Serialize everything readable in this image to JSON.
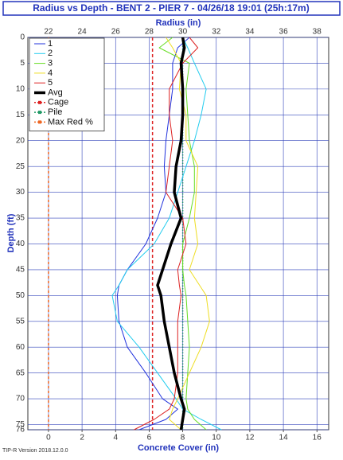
{
  "chart_data": {
    "type": "line",
    "title": "Radius vs Depth - BENT 2 - PIER 7 - 04/26/18 19:01 (25h:17m)",
    "xlabel_top": "Radius (in)",
    "xlabel": "Concrete Cover (in)",
    "ylabel": "Depth (ft)",
    "footnote": "TIP-R Version 2018.12.0.0",
    "grid": true,
    "legend": "upper left",
    "y_inverted": true,
    "ylim": [
      0,
      76
    ],
    "yticks": [
      0,
      5,
      10,
      15,
      20,
      25,
      30,
      35,
      40,
      45,
      50,
      55,
      60,
      65,
      70,
      75,
      76
    ],
    "xlim": [
      20.77,
      38.7
    ],
    "xticks": [
      22,
      24,
      26,
      28,
      30,
      32,
      34,
      36,
      38
    ],
    "x2lim": [
      -1.23,
      16.7
    ],
    "x2ticks": [
      0,
      2,
      4,
      6,
      8,
      10,
      12,
      14,
      16
    ],
    "y": [
      0,
      2,
      5,
      10,
      15,
      20,
      25,
      30,
      35,
      40,
      45,
      48,
      50,
      55,
      60,
      65,
      70,
      72,
      74,
      76
    ],
    "series": [
      {
        "name": "1",
        "color": "#2233dd",
        "width": 1,
        "values": [
          30.4,
          29.7,
          29.4,
          29.4,
          29.2,
          29.0,
          28.9,
          29.0,
          28.5,
          27.8,
          26.7,
          26.2,
          26.1,
          26.2,
          26.7,
          27.8,
          28.8,
          29.7,
          29.0,
          27.4
        ]
      },
      {
        "name": "2",
        "color": "#22ccee",
        "width": 1,
        "values": [
          30.0,
          30.3,
          30.7,
          31.4,
          31.1,
          30.7,
          30.2,
          29.7,
          29.2,
          28.3,
          26.7,
          26.2,
          25.8,
          26.1,
          27.4,
          28.5,
          29.6,
          30.0,
          31.1,
          32.3
        ]
      },
      {
        "name": "3",
        "color": "#66dd22",
        "width": 1,
        "values": [
          29.4,
          28.6,
          30.4,
          30.2,
          30.3,
          30.4,
          30.7,
          30.7,
          30.4,
          30.0,
          30.0,
          30.1,
          30.2,
          30.3,
          30.4,
          30.3,
          30.2,
          30.3,
          30.7,
          31.4
        ]
      },
      {
        "name": "4",
        "color": "#eedd22",
        "width": 1,
        "values": [
          29.0,
          29.4,
          29.9,
          29.8,
          30.2,
          30.2,
          30.9,
          30.8,
          30.7,
          30.9,
          30.4,
          31.0,
          31.4,
          31.6,
          31.1,
          30.4,
          29.7,
          29.4,
          29.2,
          29.9
        ]
      },
      {
        "name": "5",
        "color": "#dd2222",
        "width": 1,
        "values": [
          30.4,
          30.9,
          30.0,
          29.2,
          29.2,
          29.4,
          29.2,
          29.0,
          30.0,
          30.2,
          29.7,
          29.8,
          29.9,
          29.7,
          29.7,
          29.7,
          29.5,
          29.2,
          28.3,
          27.1
        ]
      },
      {
        "name": "Avg",
        "color": "#000000",
        "width": 3.5,
        "values": [
          30.0,
          30.1,
          29.9,
          30.0,
          30.0,
          29.9,
          29.6,
          29.5,
          29.9,
          29.3,
          28.8,
          28.5,
          28.7,
          28.9,
          29.2,
          29.5,
          29.9,
          30.1,
          30.0,
          29.9
        ]
      }
    ],
    "reference_lines": [
      {
        "name": "Cage",
        "color": "#dd2222",
        "dash": "4 3",
        "value": 28.2
      },
      {
        "name": "Pile",
        "color": "#229966",
        "dash": "1.5 2",
        "value": 30.0
      },
      {
        "name": "Max Red %",
        "color": "#ee6622",
        "dash": "3 3",
        "value": 22.0
      }
    ]
  }
}
